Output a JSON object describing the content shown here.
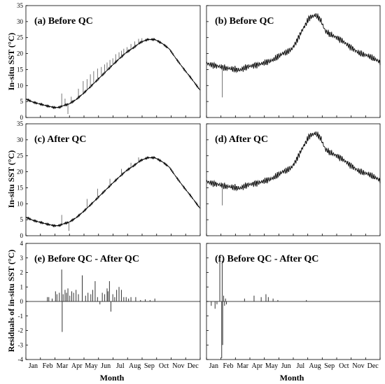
{
  "figure": {
    "ylabel_top": "In-situ SST (°C)",
    "ylabel_mid": "In-situ SST (°C)",
    "ylabel_bottom": "Residuals of in-situ SST (°C)",
    "xlabel": "Month",
    "months": [
      "Jan",
      "Feb",
      "Mar",
      "Apr",
      "May",
      "Jun",
      "Jul",
      "Aug",
      "Sep",
      "Oct",
      "Nov",
      "Dec"
    ]
  },
  "chart_data": [
    {
      "type": "line",
      "panel": "a",
      "title": "(a) Before QC",
      "ylim": [
        0,
        35
      ],
      "yticks": [
        0,
        5,
        10,
        15,
        20,
        25,
        30,
        35
      ],
      "x": [
        0,
        15,
        30,
        45,
        60,
        70,
        80,
        90,
        105,
        120,
        135,
        150,
        165,
        180,
        195,
        210,
        225,
        240,
        255,
        270,
        285,
        300,
        315,
        330,
        345,
        365
      ],
      "y": [
        5.8,
        4.8,
        4.2,
        3.6,
        3.1,
        3.2,
        3.8,
        4.2,
        5.6,
        7.5,
        9.6,
        11.8,
        14,
        16.2,
        18.3,
        20.3,
        21.8,
        23.5,
        24.4,
        24.4,
        23.2,
        21.5,
        18.3,
        15.3,
        12.5,
        8.5
      ],
      "spikes": [
        [
          75,
          7.5
        ],
        [
          82,
          5.9
        ],
        [
          88,
          1.1
        ],
        [
          95,
          6.5
        ],
        [
          110,
          9
        ],
        [
          120,
          11.4
        ],
        [
          128,
          12
        ],
        [
          135,
          13.5
        ],
        [
          142,
          14.5
        ],
        [
          150,
          15.3
        ],
        [
          158,
          15.8
        ],
        [
          165,
          16.6
        ],
        [
          170,
          17.2
        ],
        [
          176,
          18
        ],
        [
          182,
          18.5
        ],
        [
          188,
          19.8
        ],
        [
          195,
          20.4
        ],
        [
          200,
          20.9
        ],
        [
          205,
          21.5
        ],
        [
          212,
          22
        ],
        [
          220,
          23
        ],
        [
          228,
          23.8
        ],
        [
          236,
          24.6
        ],
        [
          243,
          24.8
        ]
      ],
      "grid": false
    },
    {
      "type": "line",
      "panel": "b",
      "title": "(b) Before QC",
      "ylim": [
        0,
        35
      ],
      "yticks": [
        0,
        5,
        10,
        15,
        20,
        25,
        30,
        35
      ],
      "x": [
        0,
        10,
        20,
        30,
        40,
        50,
        60,
        70,
        80,
        90,
        100,
        110,
        120,
        130,
        140,
        150,
        160,
        170,
        180,
        190,
        200,
        210,
        215,
        220,
        230,
        240,
        250,
        260,
        270,
        280,
        290,
        300,
        310,
        320,
        330,
        340,
        350,
        360,
        365
      ],
      "y": [
        17,
        16.5,
        16.2,
        15.8,
        15.4,
        15.3,
        15,
        14.8,
        15.5,
        16,
        16.3,
        16.6,
        17,
        17.5,
        18,
        19,
        20,
        20.5,
        21.5,
        24,
        27,
        29.5,
        31,
        31.5,
        32,
        30.5,
        27,
        26,
        25.3,
        24.5,
        23.5,
        22.3,
        21.3,
        20.2,
        19.7,
        19.3,
        18.5,
        17.8,
        17.2
      ],
      "noise_amp": 1.2,
      "spikes": [
        [
          33,
          6.3
        ]
      ],
      "grid": false
    },
    {
      "type": "line",
      "panel": "c",
      "title": "(c) After QC",
      "ylim": [
        0,
        35
      ],
      "yticks": [
        0,
        5,
        10,
        15,
        20,
        25,
        30,
        35
      ],
      "x": [
        0,
        15,
        30,
        45,
        60,
        70,
        80,
        90,
        105,
        120,
        135,
        150,
        165,
        180,
        195,
        210,
        225,
        240,
        255,
        270,
        285,
        300,
        315,
        330,
        345,
        365
      ],
      "y": [
        5.8,
        4.8,
        4.2,
        3.6,
        3.1,
        3.2,
        3.8,
        4.2,
        5.6,
        7.5,
        9.6,
        11.8,
        14,
        16.2,
        18.3,
        20.3,
        21.8,
        23.5,
        24.4,
        24.4,
        23.2,
        21.5,
        18.3,
        15.3,
        12.5,
        8.5
      ],
      "spikes": [
        [
          75,
          6.5
        ],
        [
          90,
          1.5
        ],
        [
          128,
          11.5
        ],
        [
          150,
          14.7
        ],
        [
          176,
          17.8
        ],
        [
          200,
          20.9
        ],
        [
          220,
          22.8
        ],
        [
          236,
          24.5
        ]
      ],
      "grid": false
    },
    {
      "type": "line",
      "panel": "d",
      "title": "(d) After QC",
      "ylim": [
        0,
        35
      ],
      "yticks": [
        0,
        5,
        10,
        15,
        20,
        25,
        30,
        35
      ],
      "x": [
        0,
        10,
        20,
        30,
        40,
        50,
        60,
        70,
        80,
        90,
        100,
        110,
        120,
        130,
        140,
        150,
        160,
        170,
        180,
        190,
        200,
        210,
        215,
        220,
        230,
        240,
        250,
        260,
        270,
        280,
        290,
        300,
        310,
        320,
        330,
        340,
        350,
        360,
        365
      ],
      "y": [
        17,
        16.5,
        16.2,
        15.8,
        15.4,
        15.3,
        15,
        14.8,
        15.5,
        16,
        16.3,
        16.6,
        17,
        17.5,
        18,
        19,
        20,
        20.5,
        21.5,
        24,
        27,
        29.5,
        31,
        31.5,
        32,
        30.5,
        27,
        26,
        25.3,
        24.5,
        23.5,
        22.3,
        21.3,
        20.2,
        19.7,
        19.3,
        18.5,
        17.8,
        17.2
      ],
      "noise_amp": 1.2,
      "spikes": [
        [
          33,
          9.5
        ]
      ],
      "grid": false
    },
    {
      "type": "bar",
      "panel": "e",
      "title": "(e) Before QC - After QC",
      "ylim": [
        -4,
        4
      ],
      "yticks": [
        -4,
        -3,
        -2,
        -1,
        0,
        1,
        2,
        3,
        4
      ],
      "x": [
        45,
        48,
        55,
        62,
        65,
        70,
        75,
        76,
        78,
        82,
        85,
        88,
        92,
        96,
        100,
        105,
        110,
        118,
        125,
        130,
        136,
        140,
        145,
        150,
        155,
        160,
        165,
        170,
        172,
        175,
        178,
        182,
        186,
        190,
        195,
        200,
        205,
        210,
        215,
        220,
        230,
        240,
        250,
        260,
        270
      ],
      "values": [
        0.3,
        0.3,
        0.2,
        0.7,
        0.5,
        0.6,
        2.2,
        -2.1,
        0.5,
        0.8,
        0.6,
        0.9,
        0.4,
        0.7,
        0.6,
        0.8,
        0.5,
        1.8,
        0.4,
        0.6,
        0.5,
        0.8,
        1.4,
        0.3,
        -0.2,
        0.6,
        0.5,
        0.9,
        0.7,
        1.4,
        -0.7,
        0.5,
        0.3,
        0.8,
        1.0,
        0.8,
        0.3,
        0.3,
        0.2,
        0.3,
        0.3,
        0.1,
        0.15,
        0.1,
        0.2
      ],
      "grid": false
    },
    {
      "type": "bar",
      "panel": "f",
      "title": "(f) Before QC - After QC",
      "ylim": [
        -4,
        4
      ],
      "yticks": [
        -4,
        -3,
        -2,
        -1,
        0,
        1,
        2,
        3,
        4
      ],
      "x": [
        10,
        18,
        22,
        28,
        32,
        33,
        34,
        36,
        38,
        40,
        42,
        80,
        100,
        115,
        125,
        130,
        140,
        150,
        210
      ],
      "values": [
        -0.3,
        -0.5,
        -0.2,
        3.0,
        -3.9,
        2.8,
        -3.0,
        0.4,
        -0.3,
        0.2,
        -0.2,
        0.2,
        0.4,
        0.3,
        0.5,
        0.3,
        0.2,
        0.1,
        0.1
      ],
      "grid": false
    }
  ]
}
